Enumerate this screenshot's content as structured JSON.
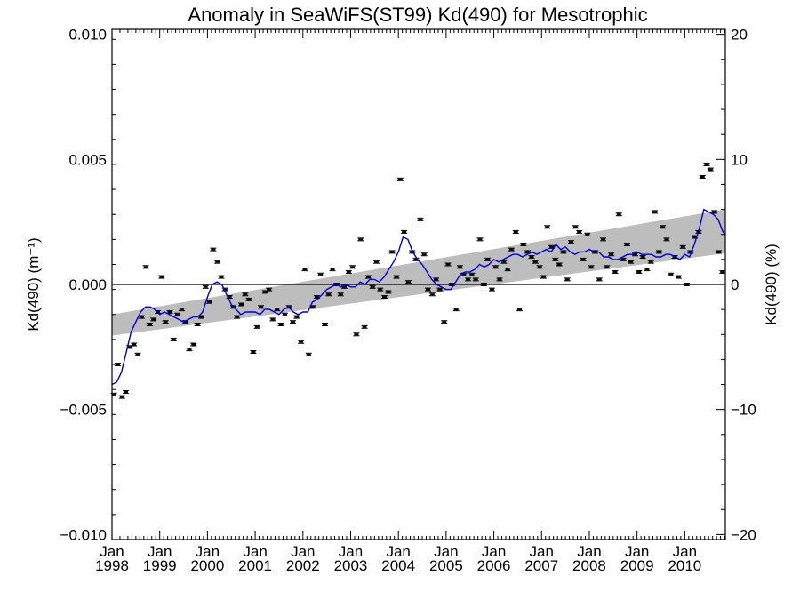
{
  "chart_data": {
    "type": "scatter",
    "title": "Anomaly in SeaWiFS(ST99) Kd(490) for Mesotrophic",
    "ylabel_left": "Kd(490) (m⁻¹)",
    "ylabel_right": "Kd(490) (%)",
    "ylim_left": [
      -0.0102,
      0.0102
    ],
    "ylim_right": [
      -20.4,
      20.4
    ],
    "xlim": [
      1998.0,
      2010.85
    ],
    "y_ticks_left": [
      {
        "value": -0.01,
        "label": "−0.010"
      },
      {
        "value": -0.005,
        "label": "−0.005"
      },
      {
        "value": 0.0,
        "label": "0.000"
      },
      {
        "value": 0.005,
        "label": "0.005"
      },
      {
        "value": 0.01,
        "label": "0.010"
      }
    ],
    "y_ticks_right": [
      {
        "value": -20,
        "label": "−20"
      },
      {
        "value": -10,
        "label": "−10"
      },
      {
        "value": 0,
        "label": "0"
      },
      {
        "value": 10,
        "label": "10"
      },
      {
        "value": 20,
        "label": "20"
      }
    ],
    "x_ticks": [
      {
        "value": 1998,
        "month": "Jan",
        "year": "1998"
      },
      {
        "value": 1999,
        "month": "Jan",
        "year": "1999"
      },
      {
        "value": 2000,
        "month": "Jan",
        "year": "2000"
      },
      {
        "value": 2001,
        "month": "Jan",
        "year": "2001"
      },
      {
        "value": 2002,
        "month": "Jan",
        "year": "2002"
      },
      {
        "value": 2003,
        "month": "Jan",
        "year": "2003"
      },
      {
        "value": 2004,
        "month": "Jan",
        "year": "2004"
      },
      {
        "value": 2005,
        "month": "Jan",
        "year": "2005"
      },
      {
        "value": 2006,
        "month": "Jan",
        "year": "2006"
      },
      {
        "value": 2007,
        "month": "Jan",
        "year": "2007"
      },
      {
        "value": 2008,
        "month": "Jan",
        "year": "2008"
      },
      {
        "value": 2009,
        "month": "Jan",
        "year": "2009"
      },
      {
        "value": 2010,
        "month": "Jan",
        "year": "2010"
      }
    ],
    "zero_line": 0,
    "trend_band": {
      "x": [
        1998.0,
        2010.85
      ],
      "lower": [
        -0.00205,
        0.00125
      ],
      "upper": [
        -0.0012,
        0.003
      ]
    },
    "monthly_anomalies": {
      "x": [
        1998.04,
        1998.12,
        1998.21,
        1998.29,
        1998.37,
        1998.46,
        1998.54,
        1998.62,
        1998.71,
        1998.79,
        1998.87,
        1998.96,
        1999.04,
        1999.12,
        1999.21,
        1999.29,
        1999.37,
        1999.46,
        1999.54,
        1999.62,
        1999.71,
        1999.79,
        1999.87,
        1999.96,
        2000.04,
        2000.12,
        2000.21,
        2000.29,
        2000.37,
        2000.46,
        2000.54,
        2000.62,
        2000.71,
        2000.79,
        2000.87,
        2000.96,
        2001.04,
        2001.12,
        2001.21,
        2001.29,
        2001.37,
        2001.46,
        2001.54,
        2001.62,
        2001.71,
        2001.79,
        2001.87,
        2001.96,
        2002.04,
        2002.12,
        2002.21,
        2002.29,
        2002.37,
        2002.46,
        2002.54,
        2002.62,
        2002.71,
        2002.79,
        2002.87,
        2002.96,
        2003.04,
        2003.12,
        2003.21,
        2003.29,
        2003.37,
        2003.46,
        2003.54,
        2003.62,
        2003.71,
        2003.79,
        2003.87,
        2003.96,
        2004.04,
        2004.12,
        2004.21,
        2004.29,
        2004.37,
        2004.46,
        2004.54,
        2004.62,
        2004.71,
        2004.79,
        2004.87,
        2004.96,
        2005.04,
        2005.12,
        2005.21,
        2005.29,
        2005.37,
        2005.46,
        2005.54,
        2005.62,
        2005.71,
        2005.79,
        2005.87,
        2005.96,
        2006.04,
        2006.12,
        2006.21,
        2006.29,
        2006.37,
        2006.46,
        2006.54,
        2006.62,
        2006.71,
        2006.79,
        2006.87,
        2006.96,
        2007.04,
        2007.12,
        2007.21,
        2007.29,
        2007.37,
        2007.46,
        2007.54,
        2007.62,
        2007.71,
        2007.79,
        2007.87,
        2007.96,
        2008.04,
        2008.12,
        2008.21,
        2008.29,
        2008.37,
        2008.46,
        2008.54,
        2008.62,
        2008.71,
        2008.79,
        2008.87,
        2008.96,
        2009.04,
        2009.12,
        2009.21,
        2009.29,
        2009.37,
        2009.46,
        2009.54,
        2009.62,
        2009.71,
        2009.79,
        2009.87,
        2009.96,
        2010.04,
        2010.12,
        2010.21,
        2010.29,
        2010.37,
        2010.46,
        2010.54,
        2010.62,
        2010.71,
        2010.79
      ],
      "y": [
        -0.0044,
        -0.0032,
        -0.0045,
        -0.0043,
        -0.0025,
        -0.0024,
        -0.0028,
        -0.0013,
        0.0007,
        -0.0016,
        -0.0014,
        -0.0011,
        0.0003,
        -0.0015,
        -0.0011,
        -0.0022,
        -0.0012,
        -0.001,
        -0.0015,
        -0.0026,
        -0.0024,
        -0.0016,
        -0.0013,
        -0.0001,
        -0.0007,
        0.0014,
        0.0009,
        0.0003,
        -0.0002,
        -0.0005,
        -0.0009,
        -0.0013,
        -0.0008,
        -0.0004,
        -0.0006,
        -0.0027,
        -0.0017,
        -0.0009,
        -0.0003,
        -0.0002,
        -0.0014,
        -0.001,
        -0.0016,
        -0.0012,
        -0.0009,
        -0.0015,
        -0.0013,
        -0.0023,
        0.0006,
        -0.0028,
        -0.0009,
        -0.0005,
        0.0004,
        -0.0016,
        -0.0004,
        0.0006,
        0.0,
        -0.0004,
        -0.0001,
        0.0005,
        0.0007,
        -0.002,
        0.0018,
        -0.0017,
        0.0003,
        -0.0001,
        0.0009,
        -0.0002,
        -0.0005,
        -0.0003,
        0.0013,
        0.0003,
        0.0042,
        0.0021,
        0.0001,
        0.0013,
        0.001,
        0.0026,
        0.0012,
        -0.0002,
        -0.0004,
        0.0002,
        -0.0002,
        -0.0015,
        0.0008,
        0.0,
        -0.001,
        0.0007,
        0.0004,
        0.0002,
        0.0004,
        0.0002,
        0.0018,
        0.0,
        0.001,
        -0.0002,
        0.0007,
        0.0002,
        0.0009,
        0.0006,
        0.0014,
        0.0021,
        -0.001,
        0.0016,
        0.0013,
        0.0011,
        0.0009,
        0.0007,
        0.0003,
        0.0023,
        0.0015,
        0.001,
        0.0008,
        0.0013,
        0.0002,
        0.0017,
        0.0023,
        0.0021,
        0.001,
        0.002,
        0.0007,
        0.0013,
        0.0002,
        0.0018,
        0.0007,
        0.0012,
        0.0005,
        0.0028,
        0.001,
        0.0016,
        0.0009,
        0.0012,
        0.0005,
        0.0011,
        0.0006,
        0.0009,
        0.0029,
        0.0013,
        0.0023,
        0.0018,
        0.0004,
        0.0011,
        0.0003,
        0.0015,
        0.0,
        0.0013,
        0.0019,
        0.0021,
        0.0043,
        0.0048,
        0.0046,
        0.0029,
        0.0013,
        0.0005
      ]
    },
    "smoothed_series": {
      "color": "#0000dd",
      "x": [
        1998.0,
        1998.1,
        1998.2,
        1998.3,
        1998.4,
        1998.5,
        1998.6,
        1998.7,
        1998.8,
        1998.9,
        1999.0,
        1999.1,
        1999.2,
        1999.3,
        1999.4,
        1999.5,
        1999.6,
        1999.7,
        1999.8,
        1999.9,
        2000.0,
        2000.1,
        2000.2,
        2000.3,
        2000.4,
        2000.5,
        2000.6,
        2000.7,
        2000.8,
        2000.9,
        2001.0,
        2001.1,
        2001.2,
        2001.3,
        2001.4,
        2001.5,
        2001.6,
        2001.7,
        2001.8,
        2001.9,
        2002.0,
        2002.1,
        2002.2,
        2002.3,
        2002.4,
        2002.5,
        2002.6,
        2002.7,
        2002.8,
        2002.9,
        2003.0,
        2003.1,
        2003.2,
        2003.3,
        2003.4,
        2003.5,
        2003.6,
        2003.7,
        2003.8,
        2003.9,
        2004.0,
        2004.1,
        2004.2,
        2004.3,
        2004.4,
        2004.5,
        2004.6,
        2004.7,
        2004.8,
        2004.9,
        2005.0,
        2005.1,
        2005.2,
        2005.3,
        2005.4,
        2005.5,
        2005.6,
        2005.7,
        2005.8,
        2005.9,
        2006.0,
        2006.1,
        2006.2,
        2006.3,
        2006.4,
        2006.5,
        2006.6,
        2006.7,
        2006.8,
        2006.9,
        2007.0,
        2007.1,
        2007.2,
        2007.3,
        2007.4,
        2007.5,
        2007.6,
        2007.7,
        2007.8,
        2007.9,
        2008.0,
        2008.1,
        2008.2,
        2008.3,
        2008.4,
        2008.5,
        2008.6,
        2008.7,
        2008.8,
        2008.9,
        2009.0,
        2009.1,
        2009.2,
        2009.3,
        2009.4,
        2009.5,
        2009.6,
        2009.7,
        2009.8,
        2009.9,
        2010.0,
        2010.1,
        2010.2,
        2010.3,
        2010.4,
        2010.5,
        2010.6,
        2010.7,
        2010.8,
        2010.85
      ],
      "y": [
        -0.004,
        -0.0039,
        -0.0035,
        -0.0027,
        -0.0019,
        -0.0015,
        -0.0011,
        -0.0009,
        -0.0009,
        -0.001,
        -0.0012,
        -0.0011,
        -0.0012,
        -0.0013,
        -0.0014,
        -0.0015,
        -0.0014,
        -0.0013,
        -0.0013,
        -0.0011,
        -0.0005,
        0.0,
        0.0001,
        0.0,
        -0.0004,
        -0.0008,
        -0.001,
        -0.0012,
        -0.0011,
        -0.0011,
        -0.0011,
        -0.0012,
        -0.001,
        -0.001,
        -0.0011,
        -0.0012,
        -0.001,
        -0.0009,
        -0.0011,
        -0.0012,
        -0.0011,
        -0.0011,
        -0.0007,
        -0.0006,
        -0.0004,
        -0.0002,
        -0.0001,
        0.0,
        -0.0001,
        0.0,
        -0.0001,
        -0.0001,
        0.0001,
        0.0,
        0.0002,
        0.0002,
        0.0001,
        0.0003,
        0.0006,
        0.0009,
        0.0013,
        0.0019,
        0.0018,
        0.0013,
        0.001,
        0.0008,
        0.0005,
        0.0002,
        0.0,
        -0.0001,
        -0.0002,
        -0.0002,
        0.0001,
        0.0004,
        0.0005,
        0.0005,
        0.0006,
        0.0008,
        0.0007,
        0.0008,
        0.001,
        0.0009,
        0.001,
        0.0011,
        0.0012,
        0.0012,
        0.0011,
        0.0012,
        0.0013,
        0.0012,
        0.0013,
        0.0014,
        0.0013,
        0.0016,
        0.0014,
        0.0015,
        0.0013,
        0.0012,
        0.0013,
        0.0013,
        0.0014,
        0.0013,
        0.0013,
        0.0011,
        0.0011,
        0.001,
        0.001,
        0.0011,
        0.0012,
        0.0012,
        0.0013,
        0.0012,
        0.0012,
        0.0012,
        0.0011,
        0.0011,
        0.0012,
        0.0012,
        0.0011,
        0.001,
        0.0012,
        0.0011,
        0.0016,
        0.0022,
        0.003,
        0.0029,
        0.0028,
        0.0026,
        0.0021,
        0.002
      ]
    }
  }
}
